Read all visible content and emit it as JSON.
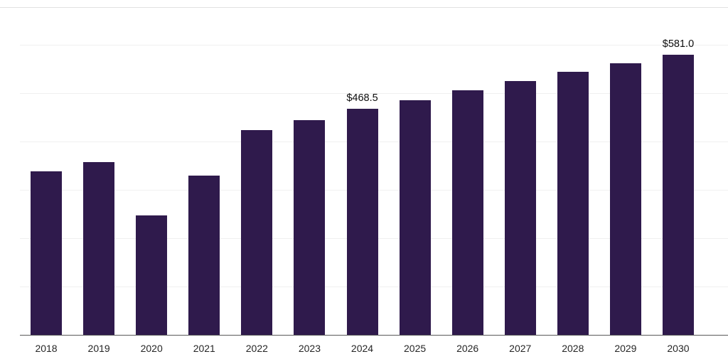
{
  "chart_data": {
    "type": "bar",
    "title": "",
    "xlabel": "",
    "ylabel": "",
    "categories": [
      "2018",
      "2019",
      "2020",
      "2021",
      "2022",
      "2023",
      "2024",
      "2025",
      "2026",
      "2027",
      "2028",
      "2029",
      "2030"
    ],
    "values": [
      339.0,
      358.0,
      247.5,
      330.0,
      424.5,
      445.0,
      468.5,
      486.5,
      507.0,
      526.0,
      546.5,
      563.0,
      581.0
    ],
    "data_labels": [
      "",
      "",
      "",
      "",
      "",
      "",
      "$468.5",
      "",
      "",
      "",
      "",
      "",
      "$581.0"
    ],
    "ylim": [
      0,
      680
    ],
    "grid_step": 100,
    "grid": "horizontal",
    "legend": false,
    "bar_color": "#2f1a4c",
    "grid_color": "#f0f0f0",
    "top_border_color": "#e2e2e2",
    "axis_color": "#595959",
    "data_label_color": "#0d0d0d",
    "tick_label_color": "#262626"
  }
}
